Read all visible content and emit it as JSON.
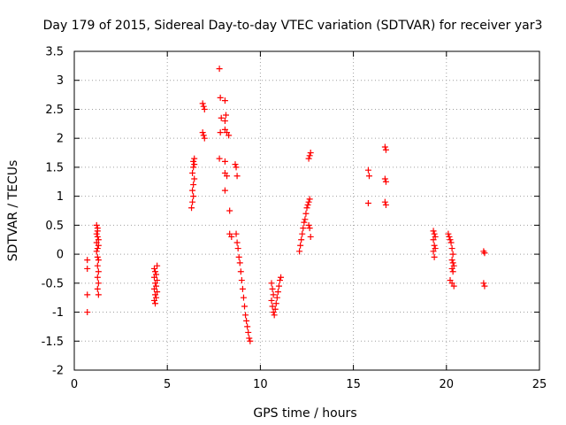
{
  "chart_data": {
    "type": "scatter",
    "title": "Day 179 of 2015, Sidereal Day-to-day VTEC variation (SDTVAR) for receiver yar3",
    "xlabel": "GPS time / hours",
    "ylabel": "SDTVAR / TECUs",
    "xlim": [
      0,
      25
    ],
    "ylim": [
      -2,
      3.5
    ],
    "xticks": [
      0,
      5,
      10,
      15,
      20,
      25
    ],
    "xtick_labels": [
      "0",
      "5",
      "10",
      "15",
      "20",
      "25"
    ],
    "yticks": [
      -2,
      -1.5,
      -1,
      -0.5,
      0,
      0.5,
      1,
      1.5,
      2,
      2.5,
      3,
      3.5
    ],
    "ytick_labels": [
      "-2",
      "-1.5",
      "-1",
      "-0.5",
      "0",
      "0.5",
      "1",
      "1.5",
      "2",
      "2.5",
      "3",
      "3.5"
    ],
    "grid": true,
    "marker": "+",
    "color": "#ff0000",
    "series": [
      {
        "name": "SDTVAR",
        "points": [
          [
            0.7,
            -0.1
          ],
          [
            0.7,
            -0.25
          ],
          [
            0.7,
            -0.7
          ],
          [
            0.7,
            -1.0
          ],
          [
            1.2,
            0.5
          ],
          [
            1.25,
            0.45
          ],
          [
            1.25,
            0.4
          ],
          [
            1.2,
            0.35
          ],
          [
            1.25,
            0.3
          ],
          [
            1.3,
            0.25
          ],
          [
            1.2,
            0.2
          ],
          [
            1.3,
            0.15
          ],
          [
            1.25,
            0.1
          ],
          [
            1.2,
            0.05
          ],
          [
            1.25,
            -0.05
          ],
          [
            1.3,
            -0.1
          ],
          [
            1.25,
            -0.2
          ],
          [
            1.3,
            -0.3
          ],
          [
            1.25,
            -0.4
          ],
          [
            1.3,
            -0.5
          ],
          [
            1.25,
            -0.6
          ],
          [
            1.3,
            -0.7
          ],
          [
            4.3,
            -0.25
          ],
          [
            4.35,
            -0.3
          ],
          [
            4.4,
            -0.35
          ],
          [
            4.3,
            -0.4
          ],
          [
            4.45,
            -0.45
          ],
          [
            4.35,
            -0.5
          ],
          [
            4.4,
            -0.55
          ],
          [
            4.3,
            -0.6
          ],
          [
            4.45,
            -0.65
          ],
          [
            4.35,
            -0.7
          ],
          [
            4.4,
            -0.75
          ],
          [
            4.3,
            -0.8
          ],
          [
            4.35,
            -0.85
          ],
          [
            4.45,
            -0.2
          ],
          [
            6.3,
            0.8
          ],
          [
            6.35,
            0.9
          ],
          [
            6.4,
            1.0
          ],
          [
            6.35,
            1.1
          ],
          [
            6.4,
            1.2
          ],
          [
            6.45,
            1.3
          ],
          [
            6.35,
            1.4
          ],
          [
            6.4,
            1.5
          ],
          [
            6.45,
            1.55
          ],
          [
            6.4,
            1.6
          ],
          [
            6.45,
            1.65
          ],
          [
            6.9,
            2.6
          ],
          [
            6.95,
            2.55
          ],
          [
            7.0,
            2.5
          ],
          [
            6.9,
            2.1
          ],
          [
            6.95,
            2.05
          ],
          [
            7.0,
            2.0
          ],
          [
            7.8,
            3.2
          ],
          [
            7.85,
            2.7
          ],
          [
            7.9,
            2.35
          ],
          [
            7.85,
            2.1
          ],
          [
            7.8,
            1.65
          ],
          [
            8.1,
            2.65
          ],
          [
            8.15,
            2.4
          ],
          [
            8.1,
            2.3
          ],
          [
            8.1,
            2.15
          ],
          [
            8.2,
            2.1
          ],
          [
            8.3,
            2.05
          ],
          [
            8.1,
            1.6
          ],
          [
            8.1,
            1.4
          ],
          [
            8.2,
            1.35
          ],
          [
            8.1,
            1.1
          ],
          [
            8.35,
            0.75
          ],
          [
            8.35,
            0.35
          ],
          [
            8.45,
            0.3
          ],
          [
            8.65,
            1.55
          ],
          [
            8.7,
            1.5
          ],
          [
            8.75,
            1.35
          ],
          [
            8.7,
            0.35
          ],
          [
            8.75,
            0.2
          ],
          [
            8.8,
            0.1
          ],
          [
            8.85,
            -0.05
          ],
          [
            8.9,
            -0.15
          ],
          [
            8.95,
            -0.3
          ],
          [
            9.0,
            -0.45
          ],
          [
            9.05,
            -0.6
          ],
          [
            9.1,
            -0.75
          ],
          [
            9.15,
            -0.9
          ],
          [
            9.2,
            -1.05
          ],
          [
            9.25,
            -1.15
          ],
          [
            9.3,
            -1.25
          ],
          [
            9.35,
            -1.35
          ],
          [
            9.4,
            -1.45
          ],
          [
            9.45,
            -1.5
          ],
          [
            10.6,
            -0.5
          ],
          [
            10.65,
            -0.6
          ],
          [
            10.7,
            -0.7
          ],
          [
            10.6,
            -0.8
          ],
          [
            10.65,
            -0.9
          ],
          [
            10.7,
            -1.0
          ],
          [
            10.75,
            -1.05
          ],
          [
            10.8,
            -0.95
          ],
          [
            10.85,
            -0.85
          ],
          [
            10.9,
            -0.75
          ],
          [
            10.95,
            -0.65
          ],
          [
            11.0,
            -0.55
          ],
          [
            11.05,
            -0.45
          ],
          [
            11.1,
            -0.4
          ],
          [
            12.1,
            0.05
          ],
          [
            12.15,
            0.15
          ],
          [
            12.2,
            0.25
          ],
          [
            12.25,
            0.35
          ],
          [
            12.3,
            0.45
          ],
          [
            12.35,
            0.55
          ],
          [
            12.4,
            0.6
          ],
          [
            12.45,
            0.7
          ],
          [
            12.5,
            0.8
          ],
          [
            12.55,
            0.85
          ],
          [
            12.6,
            0.9
          ],
          [
            12.65,
            0.95
          ],
          [
            12.6,
            0.5
          ],
          [
            12.65,
            0.45
          ],
          [
            12.7,
            0.3
          ],
          [
            12.6,
            1.65
          ],
          [
            12.65,
            1.7
          ],
          [
            12.7,
            1.75
          ],
          [
            15.8,
            1.45
          ],
          [
            15.85,
            1.35
          ],
          [
            15.8,
            0.88
          ],
          [
            16.7,
            1.85
          ],
          [
            16.75,
            1.8
          ],
          [
            16.7,
            1.3
          ],
          [
            16.75,
            1.25
          ],
          [
            16.7,
            0.9
          ],
          [
            16.75,
            0.85
          ],
          [
            19.3,
            0.4
          ],
          [
            19.35,
            0.35
          ],
          [
            19.4,
            0.3
          ],
          [
            19.3,
            0.25
          ],
          [
            19.35,
            0.15
          ],
          [
            19.4,
            0.1
          ],
          [
            19.3,
            0.05
          ],
          [
            19.35,
            -0.05
          ],
          [
            20.1,
            0.35
          ],
          [
            20.15,
            0.3
          ],
          [
            20.2,
            0.25
          ],
          [
            20.25,
            0.2
          ],
          [
            20.3,
            0.1
          ],
          [
            20.35,
            0.0
          ],
          [
            20.3,
            -0.1
          ],
          [
            20.35,
            -0.15
          ],
          [
            20.4,
            -0.2
          ],
          [
            20.3,
            -0.25
          ],
          [
            20.35,
            -0.3
          ],
          [
            20.2,
            -0.45
          ],
          [
            20.3,
            -0.5
          ],
          [
            20.4,
            -0.55
          ],
          [
            22.0,
            0.05
          ],
          [
            22.05,
            0.02
          ],
          [
            22.0,
            -0.5
          ],
          [
            22.05,
            -0.55
          ]
        ]
      }
    ]
  }
}
